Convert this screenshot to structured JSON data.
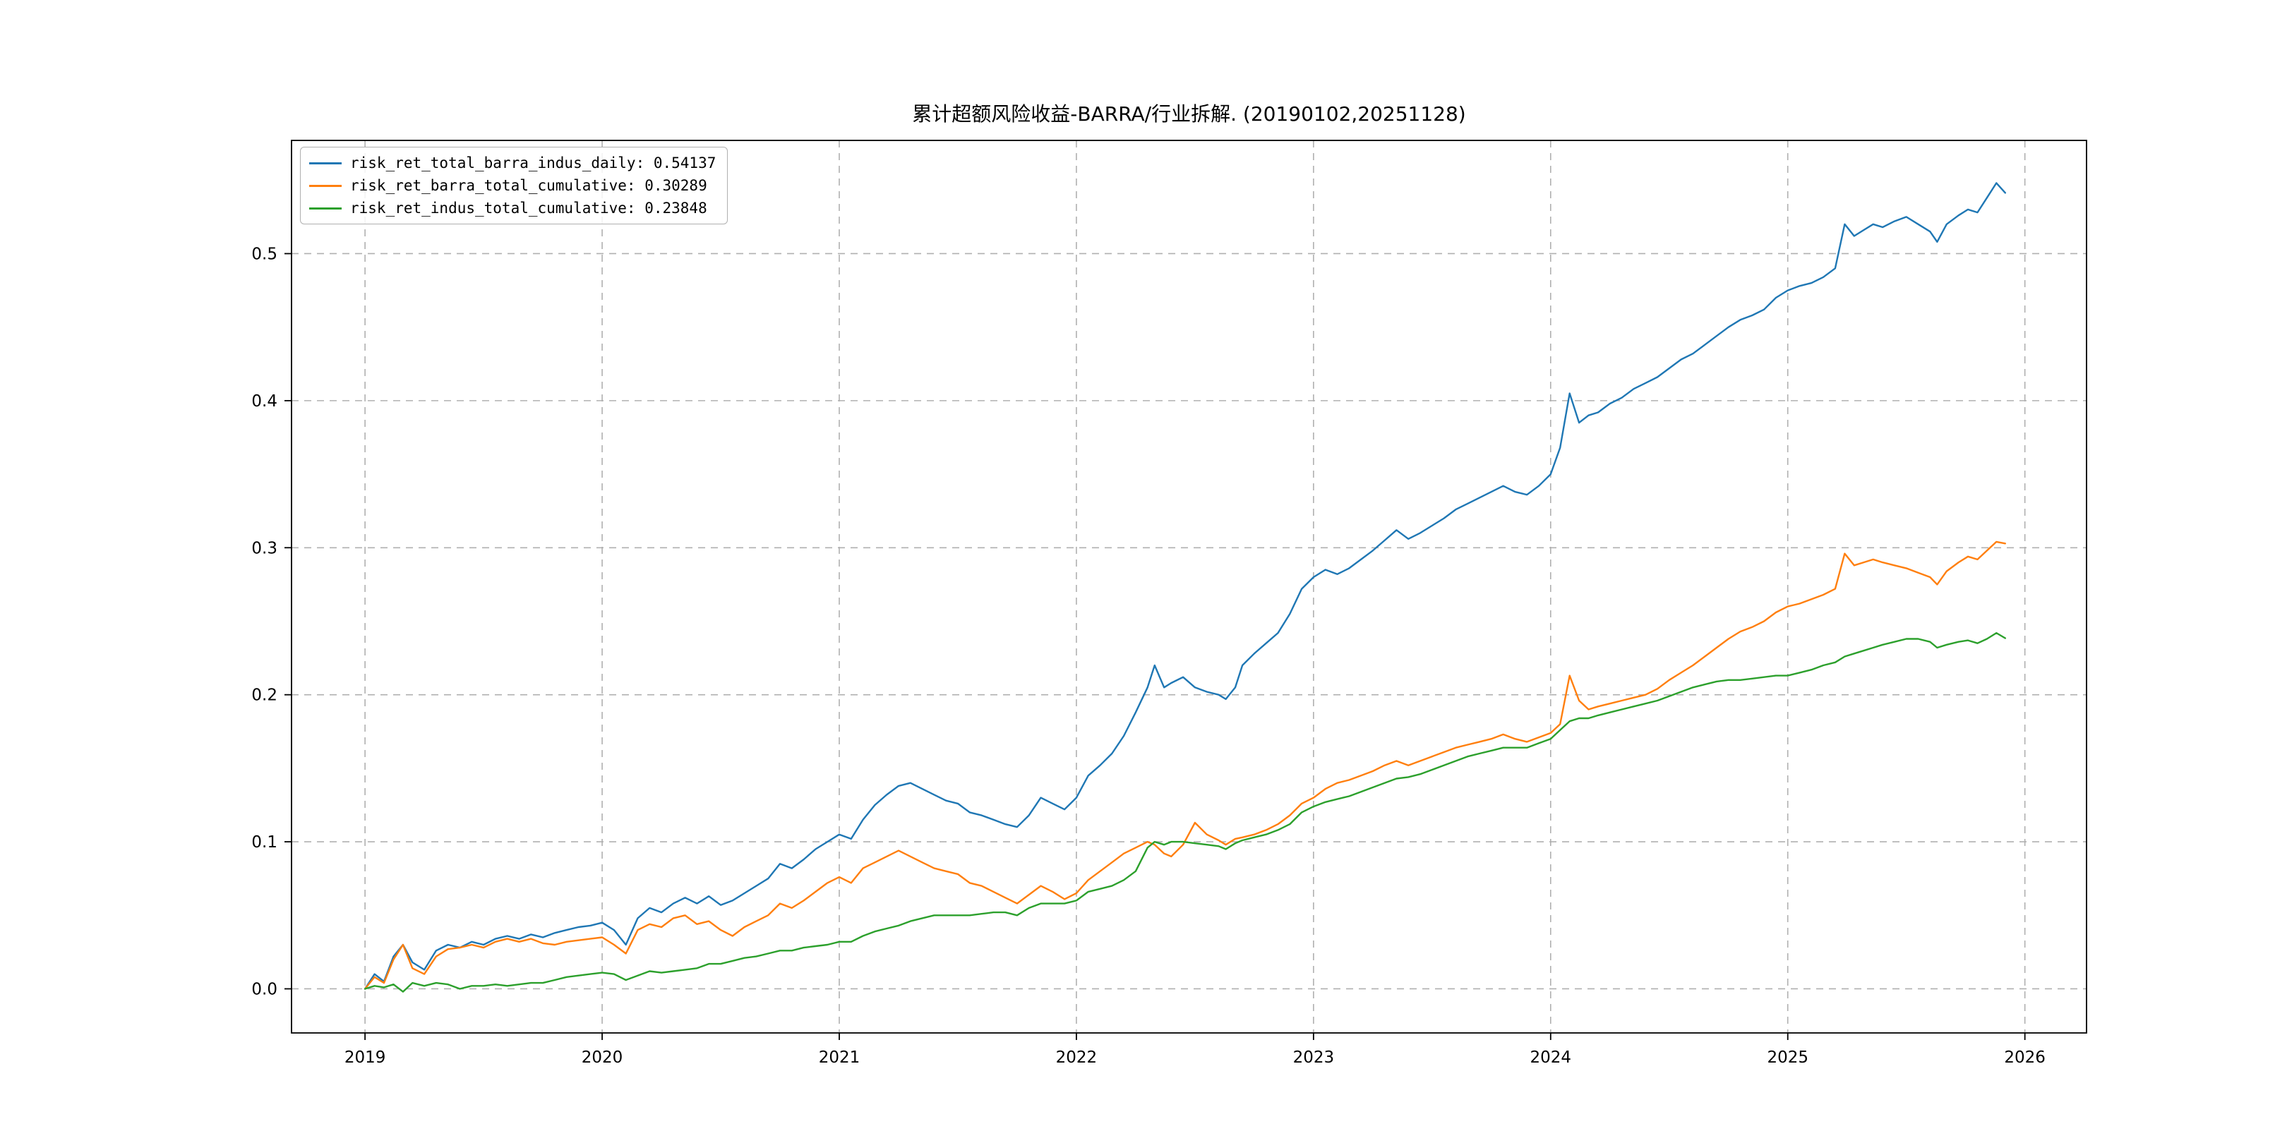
{
  "figure": {
    "background": "#ffffff"
  },
  "chart_data": {
    "type": "line",
    "title": "累计超额风险收益-BARRA/行业拆解. (20190102,20251128)",
    "xlabel": "",
    "ylabel": "",
    "xlim": [
      2018.69,
      2026.26
    ],
    "ylim": [
      -0.03,
      0.577
    ],
    "xticks": [
      2019,
      2020,
      2021,
      2022,
      2023,
      2024,
      2025,
      2026
    ],
    "yticks": [
      0.0,
      0.1,
      0.2,
      0.3,
      0.4,
      0.5
    ],
    "grid": {
      "on": true,
      "style": "dashed",
      "color": "#b0b0b0"
    },
    "legend_position": "upper left",
    "x": [
      2019.0,
      2019.04,
      2019.08,
      2019.12,
      2019.16,
      2019.2,
      2019.25,
      2019.3,
      2019.35,
      2019.4,
      2019.45,
      2019.5,
      2019.55,
      2019.6,
      2019.65,
      2019.7,
      2019.75,
      2019.8,
      2019.85,
      2019.9,
      2019.95,
      2020.0,
      2020.05,
      2020.1,
      2020.15,
      2020.2,
      2020.25,
      2020.3,
      2020.35,
      2020.4,
      2020.45,
      2020.5,
      2020.55,
      2020.6,
      2020.65,
      2020.7,
      2020.75,
      2020.8,
      2020.85,
      2020.9,
      2020.95,
      2021.0,
      2021.05,
      2021.1,
      2021.15,
      2021.2,
      2021.25,
      2021.3,
      2021.35,
      2021.4,
      2021.45,
      2021.5,
      2021.55,
      2021.6,
      2021.65,
      2021.7,
      2021.75,
      2021.8,
      2021.85,
      2021.9,
      2021.95,
      2022.0,
      2022.05,
      2022.1,
      2022.15,
      2022.2,
      2022.25,
      2022.3,
      2022.33,
      2022.37,
      2022.4,
      2022.45,
      2022.5,
      2022.55,
      2022.6,
      2022.63,
      2022.67,
      2022.7,
      2022.75,
      2022.8,
      2022.85,
      2022.9,
      2022.95,
      2023.0,
      2023.05,
      2023.1,
      2023.15,
      2023.2,
      2023.25,
      2023.3,
      2023.35,
      2023.4,
      2023.45,
      2023.5,
      2023.55,
      2023.6,
      2023.65,
      2023.7,
      2023.75,
      2023.8,
      2023.85,
      2023.9,
      2023.95,
      2024.0,
      2024.04,
      2024.08,
      2024.12,
      2024.16,
      2024.2,
      2024.25,
      2024.3,
      2024.35,
      2024.4,
      2024.45,
      2024.5,
      2024.55,
      2024.6,
      2024.65,
      2024.7,
      2024.75,
      2024.8,
      2024.85,
      2024.9,
      2024.95,
      2025.0,
      2025.05,
      2025.1,
      2025.15,
      2025.2,
      2025.24,
      2025.28,
      2025.32,
      2025.36,
      2025.4,
      2025.45,
      2025.5,
      2025.55,
      2025.6,
      2025.63,
      2025.67,
      2025.72,
      2025.76,
      2025.8,
      2025.84,
      2025.88,
      2025.917
    ],
    "series": [
      {
        "name": "risk_ret_total_barra_indus_daily",
        "legend_label": "risk_ret_total_barra_indus_daily: 0.54137",
        "final_value": 0.54137,
        "color": "#1f77b4",
        "values": [
          0.0,
          0.01,
          0.005,
          0.022,
          0.03,
          0.018,
          0.013,
          0.026,
          0.03,
          0.028,
          0.032,
          0.03,
          0.034,
          0.036,
          0.034,
          0.037,
          0.035,
          0.038,
          0.04,
          0.042,
          0.043,
          0.045,
          0.04,
          0.03,
          0.048,
          0.055,
          0.052,
          0.058,
          0.062,
          0.058,
          0.063,
          0.057,
          0.06,
          0.065,
          0.07,
          0.075,
          0.085,
          0.082,
          0.088,
          0.095,
          0.1,
          0.105,
          0.102,
          0.115,
          0.125,
          0.132,
          0.138,
          0.14,
          0.136,
          0.132,
          0.128,
          0.126,
          0.12,
          0.118,
          0.115,
          0.112,
          0.11,
          0.118,
          0.13,
          0.126,
          0.122,
          0.13,
          0.145,
          0.152,
          0.16,
          0.172,
          0.188,
          0.205,
          0.22,
          0.205,
          0.208,
          0.212,
          0.205,
          0.202,
          0.2,
          0.197,
          0.205,
          0.22,
          0.228,
          0.235,
          0.242,
          0.255,
          0.272,
          0.28,
          0.285,
          0.282,
          0.286,
          0.292,
          0.298,
          0.305,
          0.312,
          0.306,
          0.31,
          0.315,
          0.32,
          0.326,
          0.33,
          0.334,
          0.338,
          0.342,
          0.338,
          0.336,
          0.342,
          0.35,
          0.368,
          0.405,
          0.385,
          0.39,
          0.392,
          0.398,
          0.402,
          0.408,
          0.412,
          0.416,
          0.422,
          0.428,
          0.432,
          0.438,
          0.444,
          0.45,
          0.455,
          0.458,
          0.462,
          0.47,
          0.475,
          0.478,
          0.48,
          0.484,
          0.49,
          0.52,
          0.512,
          0.516,
          0.52,
          0.518,
          0.522,
          0.525,
          0.52,
          0.515,
          0.508,
          0.52,
          0.526,
          0.53,
          0.528,
          0.538,
          0.548,
          0.54137
        ]
      },
      {
        "name": "risk_ret_barra_total_cumulative",
        "legend_label": "risk_ret_barra_total_cumulative: 0.30289",
        "final_value": 0.30289,
        "color": "#ff7f0e",
        "values": [
          0.0,
          0.008,
          0.004,
          0.02,
          0.03,
          0.014,
          0.01,
          0.022,
          0.027,
          0.028,
          0.03,
          0.028,
          0.032,
          0.034,
          0.032,
          0.034,
          0.031,
          0.03,
          0.032,
          0.033,
          0.034,
          0.035,
          0.03,
          0.024,
          0.04,
          0.044,
          0.042,
          0.048,
          0.05,
          0.044,
          0.046,
          0.04,
          0.036,
          0.042,
          0.046,
          0.05,
          0.058,
          0.055,
          0.06,
          0.066,
          0.072,
          0.076,
          0.072,
          0.082,
          0.086,
          0.09,
          0.094,
          0.09,
          0.086,
          0.082,
          0.08,
          0.078,
          0.072,
          0.07,
          0.066,
          0.062,
          0.058,
          0.064,
          0.07,
          0.066,
          0.061,
          0.065,
          0.074,
          0.08,
          0.086,
          0.092,
          0.096,
          0.1,
          0.098,
          0.092,
          0.09,
          0.098,
          0.113,
          0.105,
          0.101,
          0.098,
          0.102,
          0.103,
          0.105,
          0.108,
          0.112,
          0.118,
          0.126,
          0.13,
          0.136,
          0.14,
          0.142,
          0.145,
          0.148,
          0.152,
          0.155,
          0.152,
          0.155,
          0.158,
          0.161,
          0.164,
          0.166,
          0.168,
          0.17,
          0.173,
          0.17,
          0.168,
          0.171,
          0.174,
          0.18,
          0.213,
          0.196,
          0.19,
          0.192,
          0.194,
          0.196,
          0.198,
          0.2,
          0.204,
          0.21,
          0.215,
          0.22,
          0.226,
          0.232,
          0.238,
          0.243,
          0.246,
          0.25,
          0.256,
          0.26,
          0.262,
          0.265,
          0.268,
          0.272,
          0.296,
          0.288,
          0.29,
          0.292,
          0.29,
          0.288,
          0.286,
          0.283,
          0.28,
          0.275,
          0.284,
          0.29,
          0.294,
          0.292,
          0.298,
          0.304,
          0.30289
        ]
      },
      {
        "name": "risk_ret_indus_total_cumulative",
        "legend_label": "risk_ret_indus_total_cumulative: 0.23848",
        "final_value": 0.23848,
        "color": "#2ca02c",
        "values": [
          0.0,
          0.002,
          0.001,
          0.003,
          -0.002,
          0.004,
          0.002,
          0.004,
          0.003,
          0.0,
          0.002,
          0.002,
          0.003,
          0.002,
          0.003,
          0.004,
          0.004,
          0.006,
          0.008,
          0.009,
          0.01,
          0.011,
          0.01,
          0.006,
          0.009,
          0.012,
          0.011,
          0.012,
          0.013,
          0.014,
          0.017,
          0.017,
          0.019,
          0.021,
          0.022,
          0.024,
          0.026,
          0.026,
          0.028,
          0.029,
          0.03,
          0.032,
          0.032,
          0.036,
          0.039,
          0.041,
          0.043,
          0.046,
          0.048,
          0.05,
          0.05,
          0.05,
          0.05,
          0.051,
          0.052,
          0.052,
          0.05,
          0.055,
          0.058,
          0.058,
          0.058,
          0.06,
          0.066,
          0.068,
          0.07,
          0.074,
          0.08,
          0.096,
          0.1,
          0.098,
          0.1,
          0.1,
          0.099,
          0.098,
          0.097,
          0.095,
          0.099,
          0.101,
          0.103,
          0.105,
          0.108,
          0.112,
          0.12,
          0.124,
          0.127,
          0.129,
          0.131,
          0.134,
          0.137,
          0.14,
          0.143,
          0.144,
          0.146,
          0.149,
          0.152,
          0.155,
          0.158,
          0.16,
          0.162,
          0.164,
          0.164,
          0.164,
          0.167,
          0.17,
          0.176,
          0.182,
          0.184,
          0.184,
          0.186,
          0.188,
          0.19,
          0.192,
          0.194,
          0.196,
          0.199,
          0.202,
          0.205,
          0.207,
          0.209,
          0.21,
          0.21,
          0.211,
          0.212,
          0.213,
          0.213,
          0.215,
          0.217,
          0.22,
          0.222,
          0.226,
          0.228,
          0.23,
          0.232,
          0.234,
          0.236,
          0.238,
          0.238,
          0.236,
          0.232,
          0.234,
          0.236,
          0.237,
          0.235,
          0.238,
          0.242,
          0.23848
        ]
      }
    ]
  }
}
